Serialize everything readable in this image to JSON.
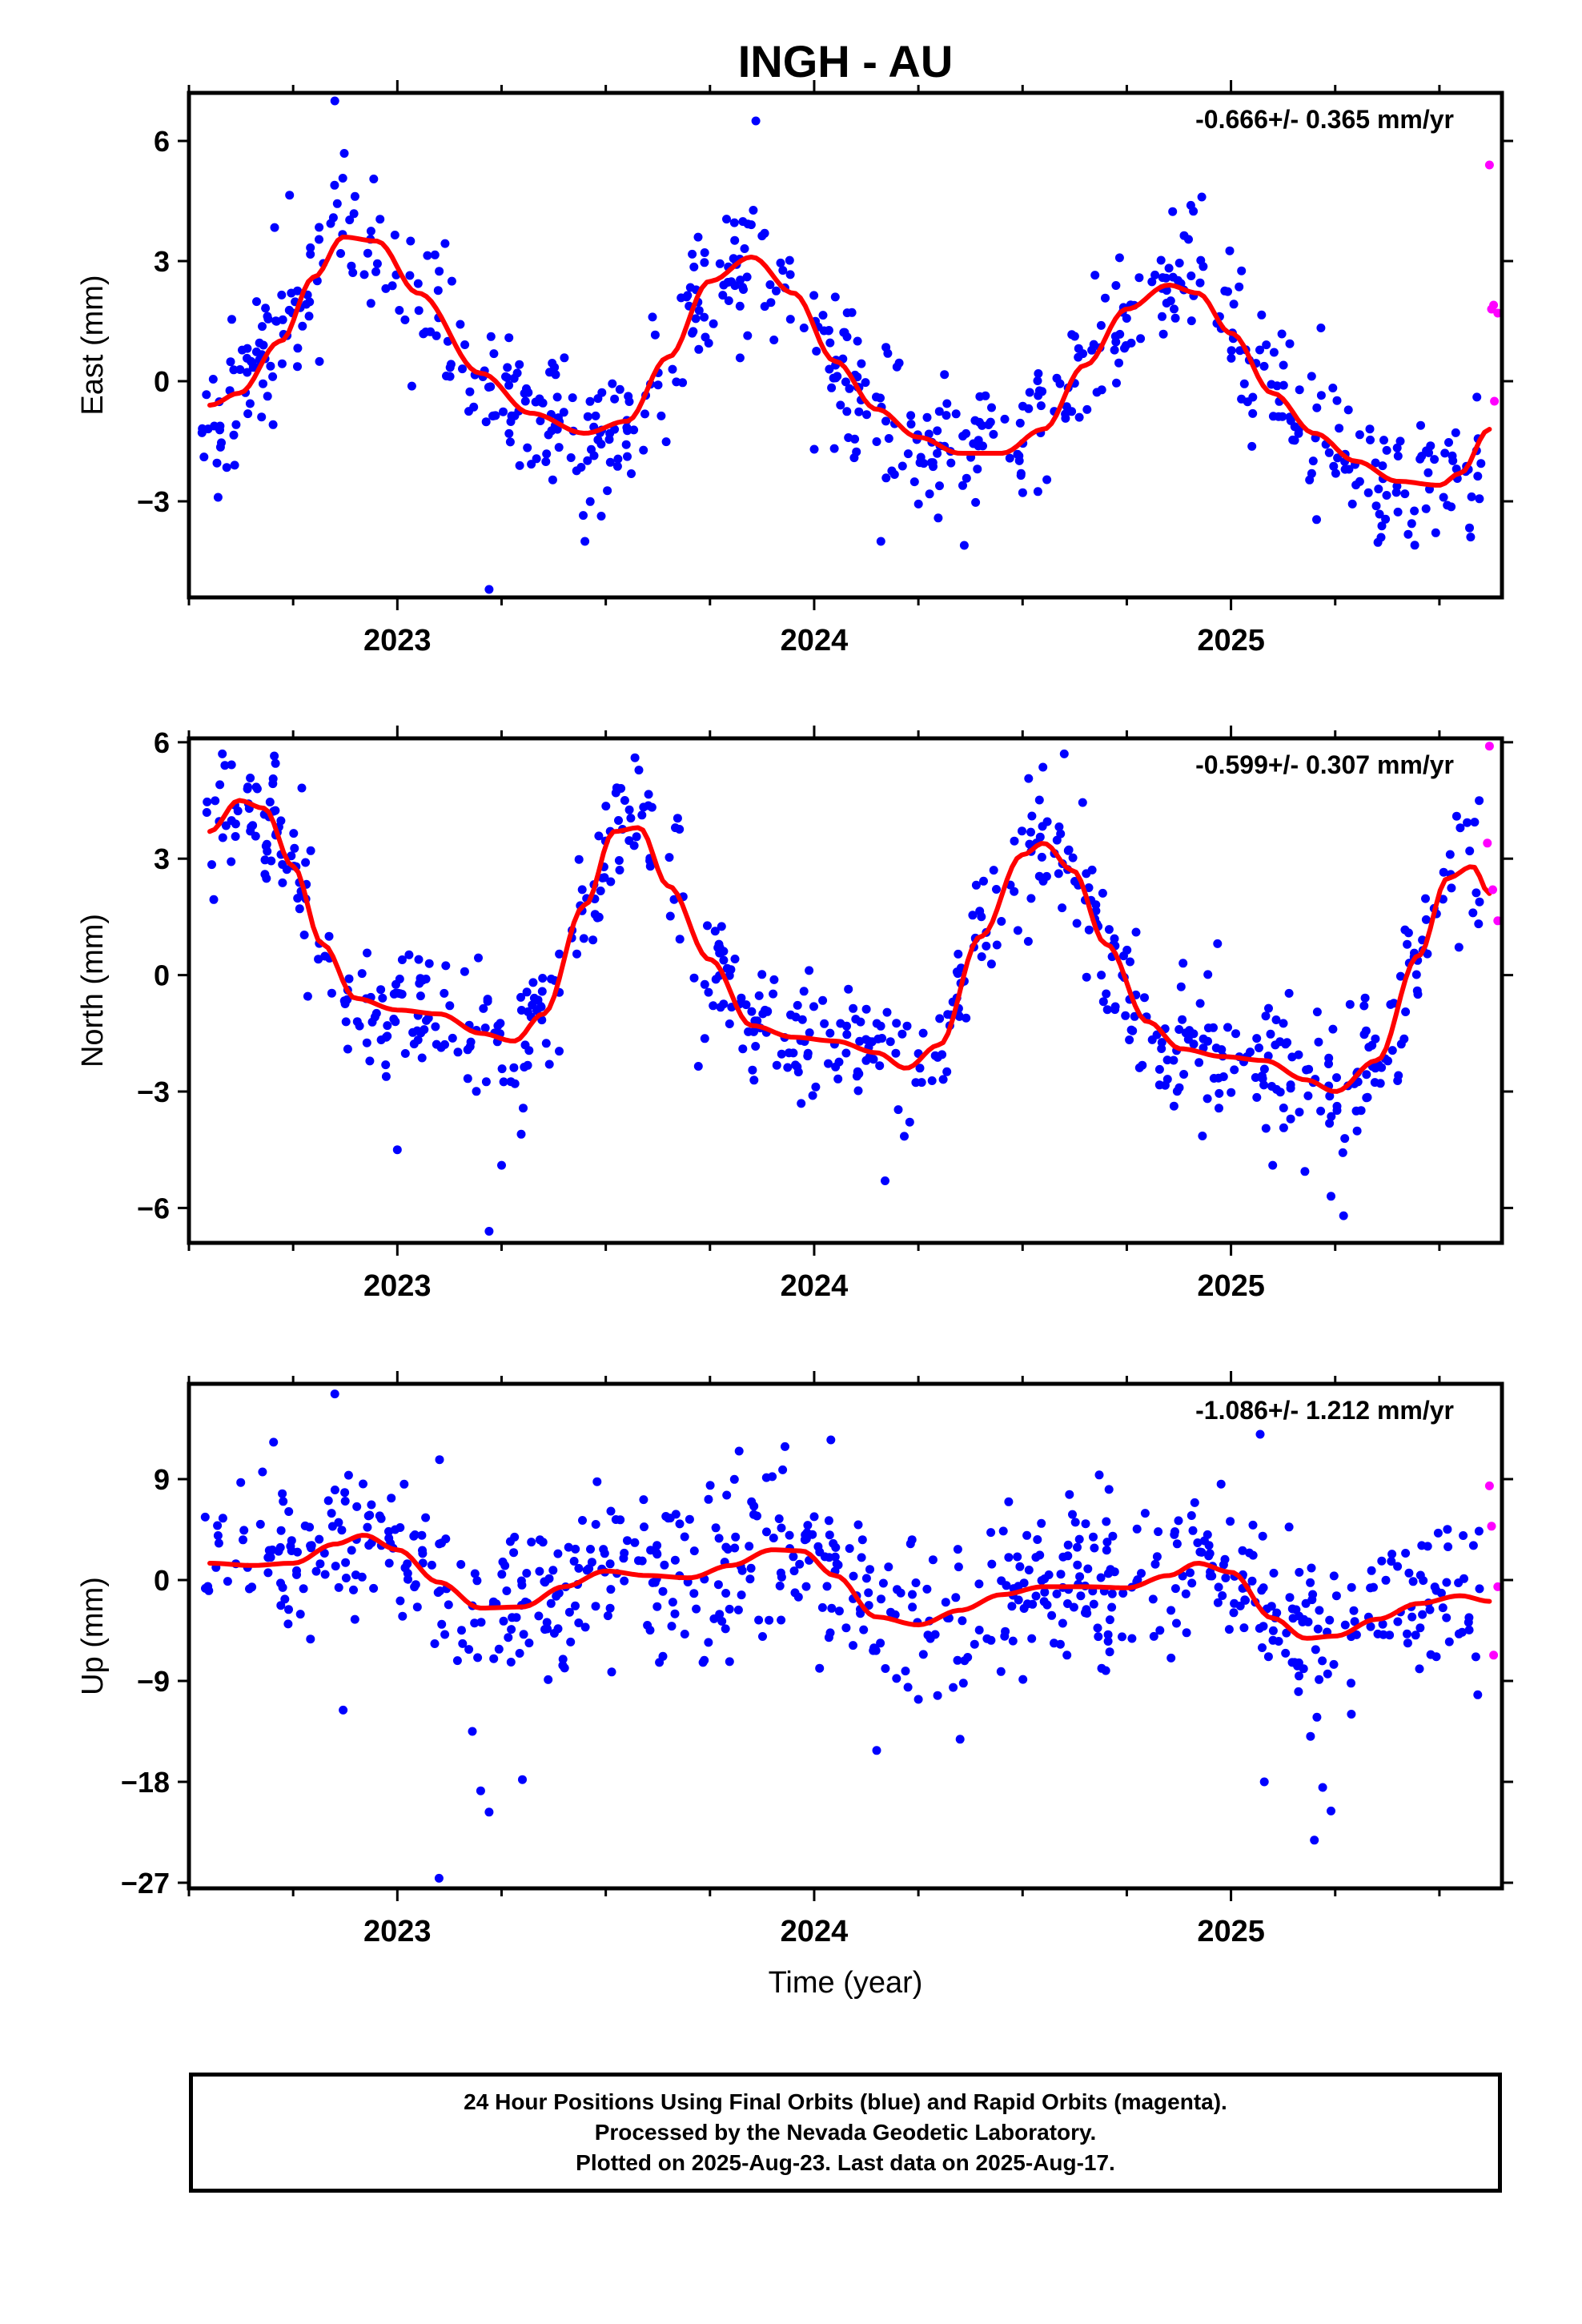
{
  "title": "INGH - AU",
  "xlabel": "Time (year)",
  "footer": {
    "line1": "24 Hour Positions Using Final Orbits (blue) and Rapid Orbits (magenta).",
    "line2": "Processed by the Nevada Geodetic Laboratory.",
    "line3": "Plotted on 2025-Aug-23. Last data on 2025-Aug-17."
  },
  "colors": {
    "final": "#0000ff",
    "rapid": "#ff00ff",
    "fit": "#ff0000"
  },
  "chart_data": [
    {
      "type": "scatter",
      "panel": "east",
      "ylabel": "East (mm)",
      "annotation": "-0.666+/- 0.365 mm/yr",
      "xlim": [
        2022.5,
        2025.65
      ],
      "ylim": [
        -5.4,
        7.2
      ],
      "yticks": [
        6,
        3,
        0,
        -3
      ],
      "xticks": [
        2023,
        2024,
        2025
      ],
      "fit_knots": {
        "x": [
          2022.55,
          2022.62,
          2022.72,
          2022.8,
          2022.87,
          2022.95,
          2023.05,
          2023.2,
          2023.32,
          2023.45,
          2023.55,
          2023.65,
          2023.75,
          2023.85,
          2023.95,
          2024.05,
          2024.15,
          2024.25,
          2024.35,
          2024.45,
          2024.55,
          2024.65,
          2024.75,
          2024.85,
          2024.92,
          2025.0,
          2025.1,
          2025.2,
          2025.3,
          2025.4,
          2025.5,
          2025.55,
          2025.62
        ],
        "y": [
          -0.6,
          -0.3,
          1.0,
          2.6,
          3.6,
          3.5,
          2.2,
          0.2,
          -0.8,
          -1.3,
          -1.0,
          0.6,
          2.5,
          3.1,
          2.2,
          0.5,
          -0.7,
          -1.4,
          -1.8,
          -1.8,
          -1.2,
          0.4,
          1.8,
          2.4,
          2.2,
          1.2,
          -0.3,
          -1.3,
          -2.0,
          -2.5,
          -2.6,
          -2.3,
          -1.2
        ]
      },
      "scatter": {
        "count": 640,
        "sigma": 0.95,
        "seed": 11,
        "outliers": [
          [
            2022.85,
            7.0
          ],
          [
            2023.22,
            -5.2
          ],
          [
            2023.86,
            6.5
          ],
          [
            2022.57,
            -2.9
          ],
          [
            2024.16,
            -4.0
          ],
          [
            2023.45,
            -4.0
          ],
          [
            2024.36,
            -4.1
          ],
          [
            2024.93,
            4.6
          ],
          [
            2025.36,
            -3.9
          ],
          [
            2024.0,
            -1.7
          ]
        ]
      },
      "rapid": [
        [
          2025.62,
          5.4
        ],
        [
          2025.625,
          1.8
        ],
        [
          2025.63,
          1.9
        ],
        [
          2025.632,
          -0.5
        ],
        [
          2025.64,
          1.7
        ]
      ]
    },
    {
      "type": "scatter",
      "panel": "north",
      "ylabel": "North (mm)",
      "annotation": "-0.599+/- 0.307 mm/yr",
      "xlim": [
        2022.5,
        2025.65
      ],
      "ylim": [
        -6.9,
        6.1
      ],
      "yticks": [
        6,
        3,
        0,
        -3,
        -6
      ],
      "xticks": [
        2023,
        2024,
        2025
      ],
      "fit_knots": {
        "x": [
          2022.55,
          2022.62,
          2022.68,
          2022.75,
          2022.82,
          2022.9,
          2023.0,
          2023.1,
          2023.2,
          2023.28,
          2023.35,
          2023.45,
          2023.52,
          2023.58,
          2023.65,
          2023.75,
          2023.85,
          2023.95,
          2024.05,
          2024.15,
          2024.22,
          2024.3,
          2024.4,
          2024.5,
          2024.55,
          2024.62,
          2024.7,
          2024.8,
          2024.88,
          2024.98,
          2025.08,
          2025.18,
          2025.25,
          2025.35,
          2025.45,
          2025.52,
          2025.58,
          2025.62
        ],
        "y": [
          3.7,
          4.5,
          4.3,
          2.8,
          0.8,
          -0.6,
          -0.9,
          -1.0,
          -1.5,
          -1.7,
          -1.0,
          1.8,
          3.7,
          3.8,
          2.3,
          0.4,
          -1.3,
          -1.6,
          -1.7,
          -2.0,
          -2.4,
          -1.8,
          1.0,
          3.1,
          3.4,
          2.7,
          0.8,
          -1.2,
          -1.9,
          -2.1,
          -2.2,
          -2.7,
          -3.0,
          -2.2,
          0.5,
          2.5,
          2.8,
          2.1
        ]
      },
      "scatter": {
        "count": 660,
        "sigma": 0.85,
        "seed": 23,
        "outliers": [
          [
            2023.22,
            -6.6
          ],
          [
            2023.0,
            -4.5
          ],
          [
            2025.27,
            -6.2
          ],
          [
            2024.6,
            5.7
          ],
          [
            2023.57,
            5.6
          ],
          [
            2022.58,
            5.7
          ],
          [
            2024.17,
            -5.3
          ],
          [
            2023.25,
            -4.9
          ],
          [
            2025.1,
            -4.9
          ],
          [
            2025.24,
            -5.7
          ]
        ]
      },
      "rapid": [
        [
          2025.62,
          5.9
        ],
        [
          2025.615,
          3.4
        ],
        [
          2025.628,
          2.2
        ],
        [
          2025.64,
          1.4
        ]
      ]
    },
    {
      "type": "scatter",
      "panel": "up",
      "ylabel": "Up (mm)",
      "annotation": "-1.086+/- 1.212 mm/yr",
      "xlim": [
        2022.5,
        2025.65
      ],
      "ylim": [
        -27.5,
        17.5
      ],
      "yticks": [
        9,
        0,
        -9,
        -18,
        -27
      ],
      "xticks": [
        2023,
        2024,
        2025
      ],
      "fit_knots": {
        "x": [
          2022.55,
          2022.65,
          2022.75,
          2022.85,
          2022.92,
          2023.0,
          2023.1,
          2023.2,
          2023.3,
          2023.4,
          2023.5,
          2023.6,
          2023.7,
          2023.8,
          2023.9,
          2023.97,
          2024.05,
          2024.15,
          2024.25,
          2024.35,
          2024.45,
          2024.55,
          2024.65,
          2024.75,
          2024.85,
          2024.92,
          2025.0,
          2025.1,
          2025.18,
          2025.25,
          2025.35,
          2025.45,
          2025.55,
          2025.62
        ],
        "y": [
          1.5,
          1.3,
          1.5,
          3.2,
          4.0,
          2.7,
          -0.2,
          -2.5,
          -2.4,
          -0.6,
          0.8,
          0.4,
          0.2,
          1.3,
          2.7,
          2.6,
          0.4,
          -3.3,
          -4.0,
          -2.7,
          -1.3,
          -0.6,
          -0.6,
          -0.7,
          0.4,
          1.5,
          0.7,
          -3.4,
          -5.2,
          -5.0,
          -3.5,
          -2.1,
          -1.4,
          -1.9
        ]
      },
      "scatter": {
        "count": 680,
        "sigma": 3.6,
        "seed": 37,
        "outliers": [
          [
            2023.1,
            -26.6
          ],
          [
            2023.2,
            -18.8
          ],
          [
            2023.22,
            -20.7
          ],
          [
            2022.85,
            16.6
          ],
          [
            2025.2,
            -23.2
          ],
          [
            2025.24,
            -20.6
          ],
          [
            2024.15,
            -15.2
          ],
          [
            2024.35,
            -14.2
          ],
          [
            2024.04,
            12.5
          ],
          [
            2025.07,
            13.0
          ],
          [
            2023.3,
            -17.8
          ],
          [
            2022.87,
            -11.6
          ],
          [
            2023.18,
            -13.5
          ],
          [
            2025.08,
            -18.0
          ],
          [
            2025.22,
            -18.5
          ],
          [
            2023.93,
            11.9
          ],
          [
            2023.82,
            11.5
          ]
        ]
      },
      "rapid": [
        [
          2025.62,
          8.4
        ],
        [
          2025.625,
          4.8
        ],
        [
          2025.64,
          -0.6
        ],
        [
          2025.63,
          -6.7
        ]
      ]
    }
  ]
}
